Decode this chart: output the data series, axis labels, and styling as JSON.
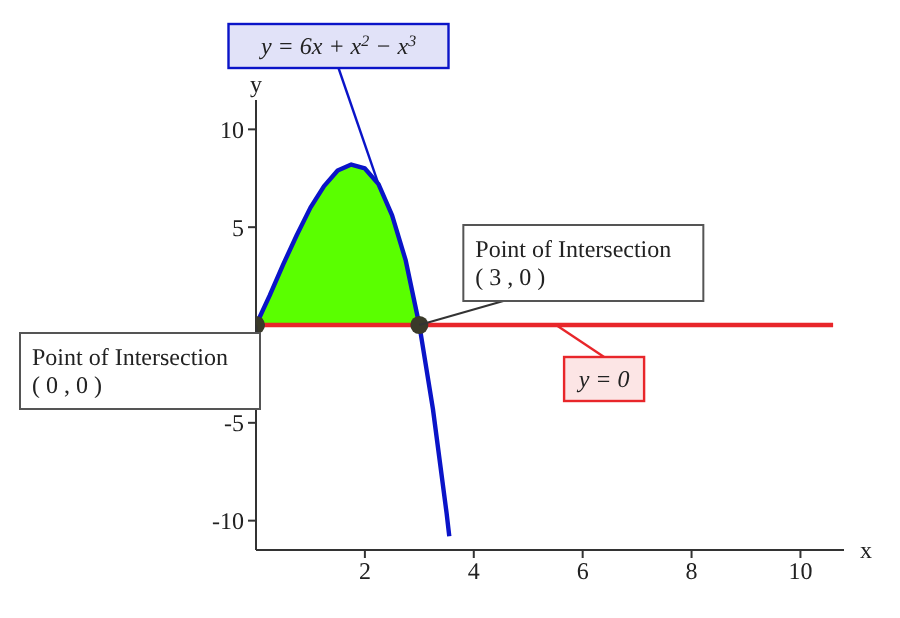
{
  "chart_data": {
    "type": "line",
    "xlabel": "x",
    "ylabel": "y",
    "xlim": [
      0,
      10.8
    ],
    "ylim": [
      -11.5,
      11.5
    ],
    "xticks": [
      2,
      4,
      6,
      8,
      10
    ],
    "yticks": [
      -10,
      -5,
      5,
      10
    ],
    "grid": false,
    "line_style": "solid",
    "series": [
      {
        "type": "area",
        "color": "#5aff00",
        "x": [
          0,
          0.25,
          0.5,
          0.75,
          1,
          1.25,
          1.5,
          1.75,
          2,
          2.25,
          2.5,
          2.75,
          3
        ],
        "values": [
          0,
          1.5,
          3.1,
          4.6,
          6,
          7.1,
          7.9,
          8.2,
          8,
          7.2,
          5.6,
          3.3,
          0
        ]
      },
      {
        "name": "y = 6x + x$^{2}$ − x$^{3}$",
        "color": "#0a14c8",
        "marker": "none",
        "x": [
          0,
          0.25,
          0.5,
          0.75,
          1,
          1.25,
          1.5,
          1.75,
          2,
          2.25,
          2.5,
          2.75,
          3,
          3.25,
          3.5,
          3.55
        ],
        "values": [
          0,
          1.5,
          3.1,
          4.6,
          6,
          7.1,
          7.9,
          8.2,
          8,
          7.2,
          5.6,
          3.3,
          0,
          -4.3,
          -9.6,
          -10.8
        ]
      },
      {
        "type": "line",
        "name": "y = 0",
        "color": "#e8262a",
        "marker": "none",
        "x": [
          0,
          10.6
        ],
        "values": [
          0,
          0
        ]
      },
      {
        "type": "scatter",
        "color": "#3a3a2a",
        "marker": "circle",
        "x": [
          0,
          3
        ],
        "values": [
          0,
          0
        ]
      }
    ],
    "annotations": [
      {
        "text": "Point of Intersection\n( 0 , 0 )",
        "x": 0,
        "y": 0
      },
      {
        "text": "Point of Intersection\n( 3 , 0 )",
        "x": 3,
        "y": 0
      }
    ]
  }
}
